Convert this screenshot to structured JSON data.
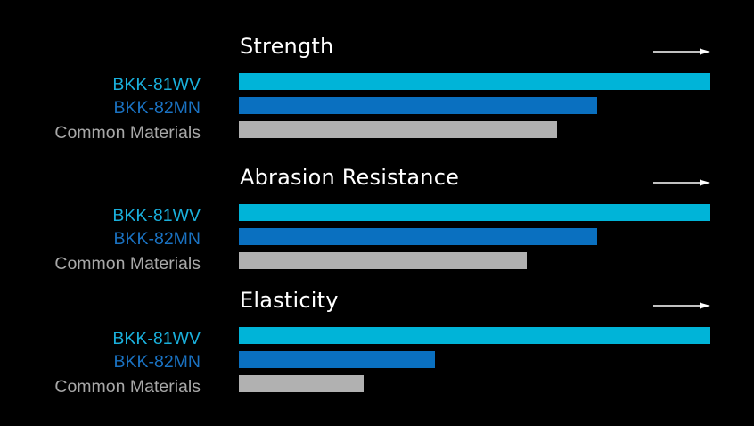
{
  "chart_data": {
    "type": "bar",
    "orientation": "horizontal",
    "xlim": [
      0,
      100
    ],
    "grid": false,
    "legend": "none",
    "colors": {
      "background": "#000000",
      "title": "#ffffff",
      "arrow": "#ffffff"
    },
    "groups": [
      {
        "title": "Strength",
        "series": [
          {
            "name": "BKK-81WV",
            "value": 100,
            "color": "#00b4d8",
            "label_color": "#1ab0dc"
          },
          {
            "name": "BKK-82MN",
            "value": 76,
            "color": "#0a70c0",
            "label_color": "#1a72c2"
          },
          {
            "name": "Common Materials",
            "value": 67.5,
            "color": "#b1b1b1",
            "label_color": "#a8a8a8"
          }
        ]
      },
      {
        "title": "Abrasion Resistance",
        "series": [
          {
            "name": "BKK-81WV",
            "value": 100,
            "color": "#00b4d8",
            "label_color": "#1ab0dc"
          },
          {
            "name": "BKK-82MN",
            "value": 76,
            "color": "#0a70c0",
            "label_color": "#1a72c2"
          },
          {
            "name": "Common Materials",
            "value": 61,
            "color": "#b1b1b1",
            "label_color": "#a8a8a8"
          }
        ]
      },
      {
        "title": "Elasticity",
        "series": [
          {
            "name": "BKK-81WV",
            "value": 100,
            "color": "#00b4d8",
            "label_color": "#1ab0dc"
          },
          {
            "name": "BKK-82MN",
            "value": 41.5,
            "color": "#0a70c0",
            "label_color": "#1a72c2"
          },
          {
            "name": "Common Materials",
            "value": 26.5,
            "color": "#b1b1b1",
            "label_color": "#a8a8a8"
          }
        ]
      }
    ]
  }
}
